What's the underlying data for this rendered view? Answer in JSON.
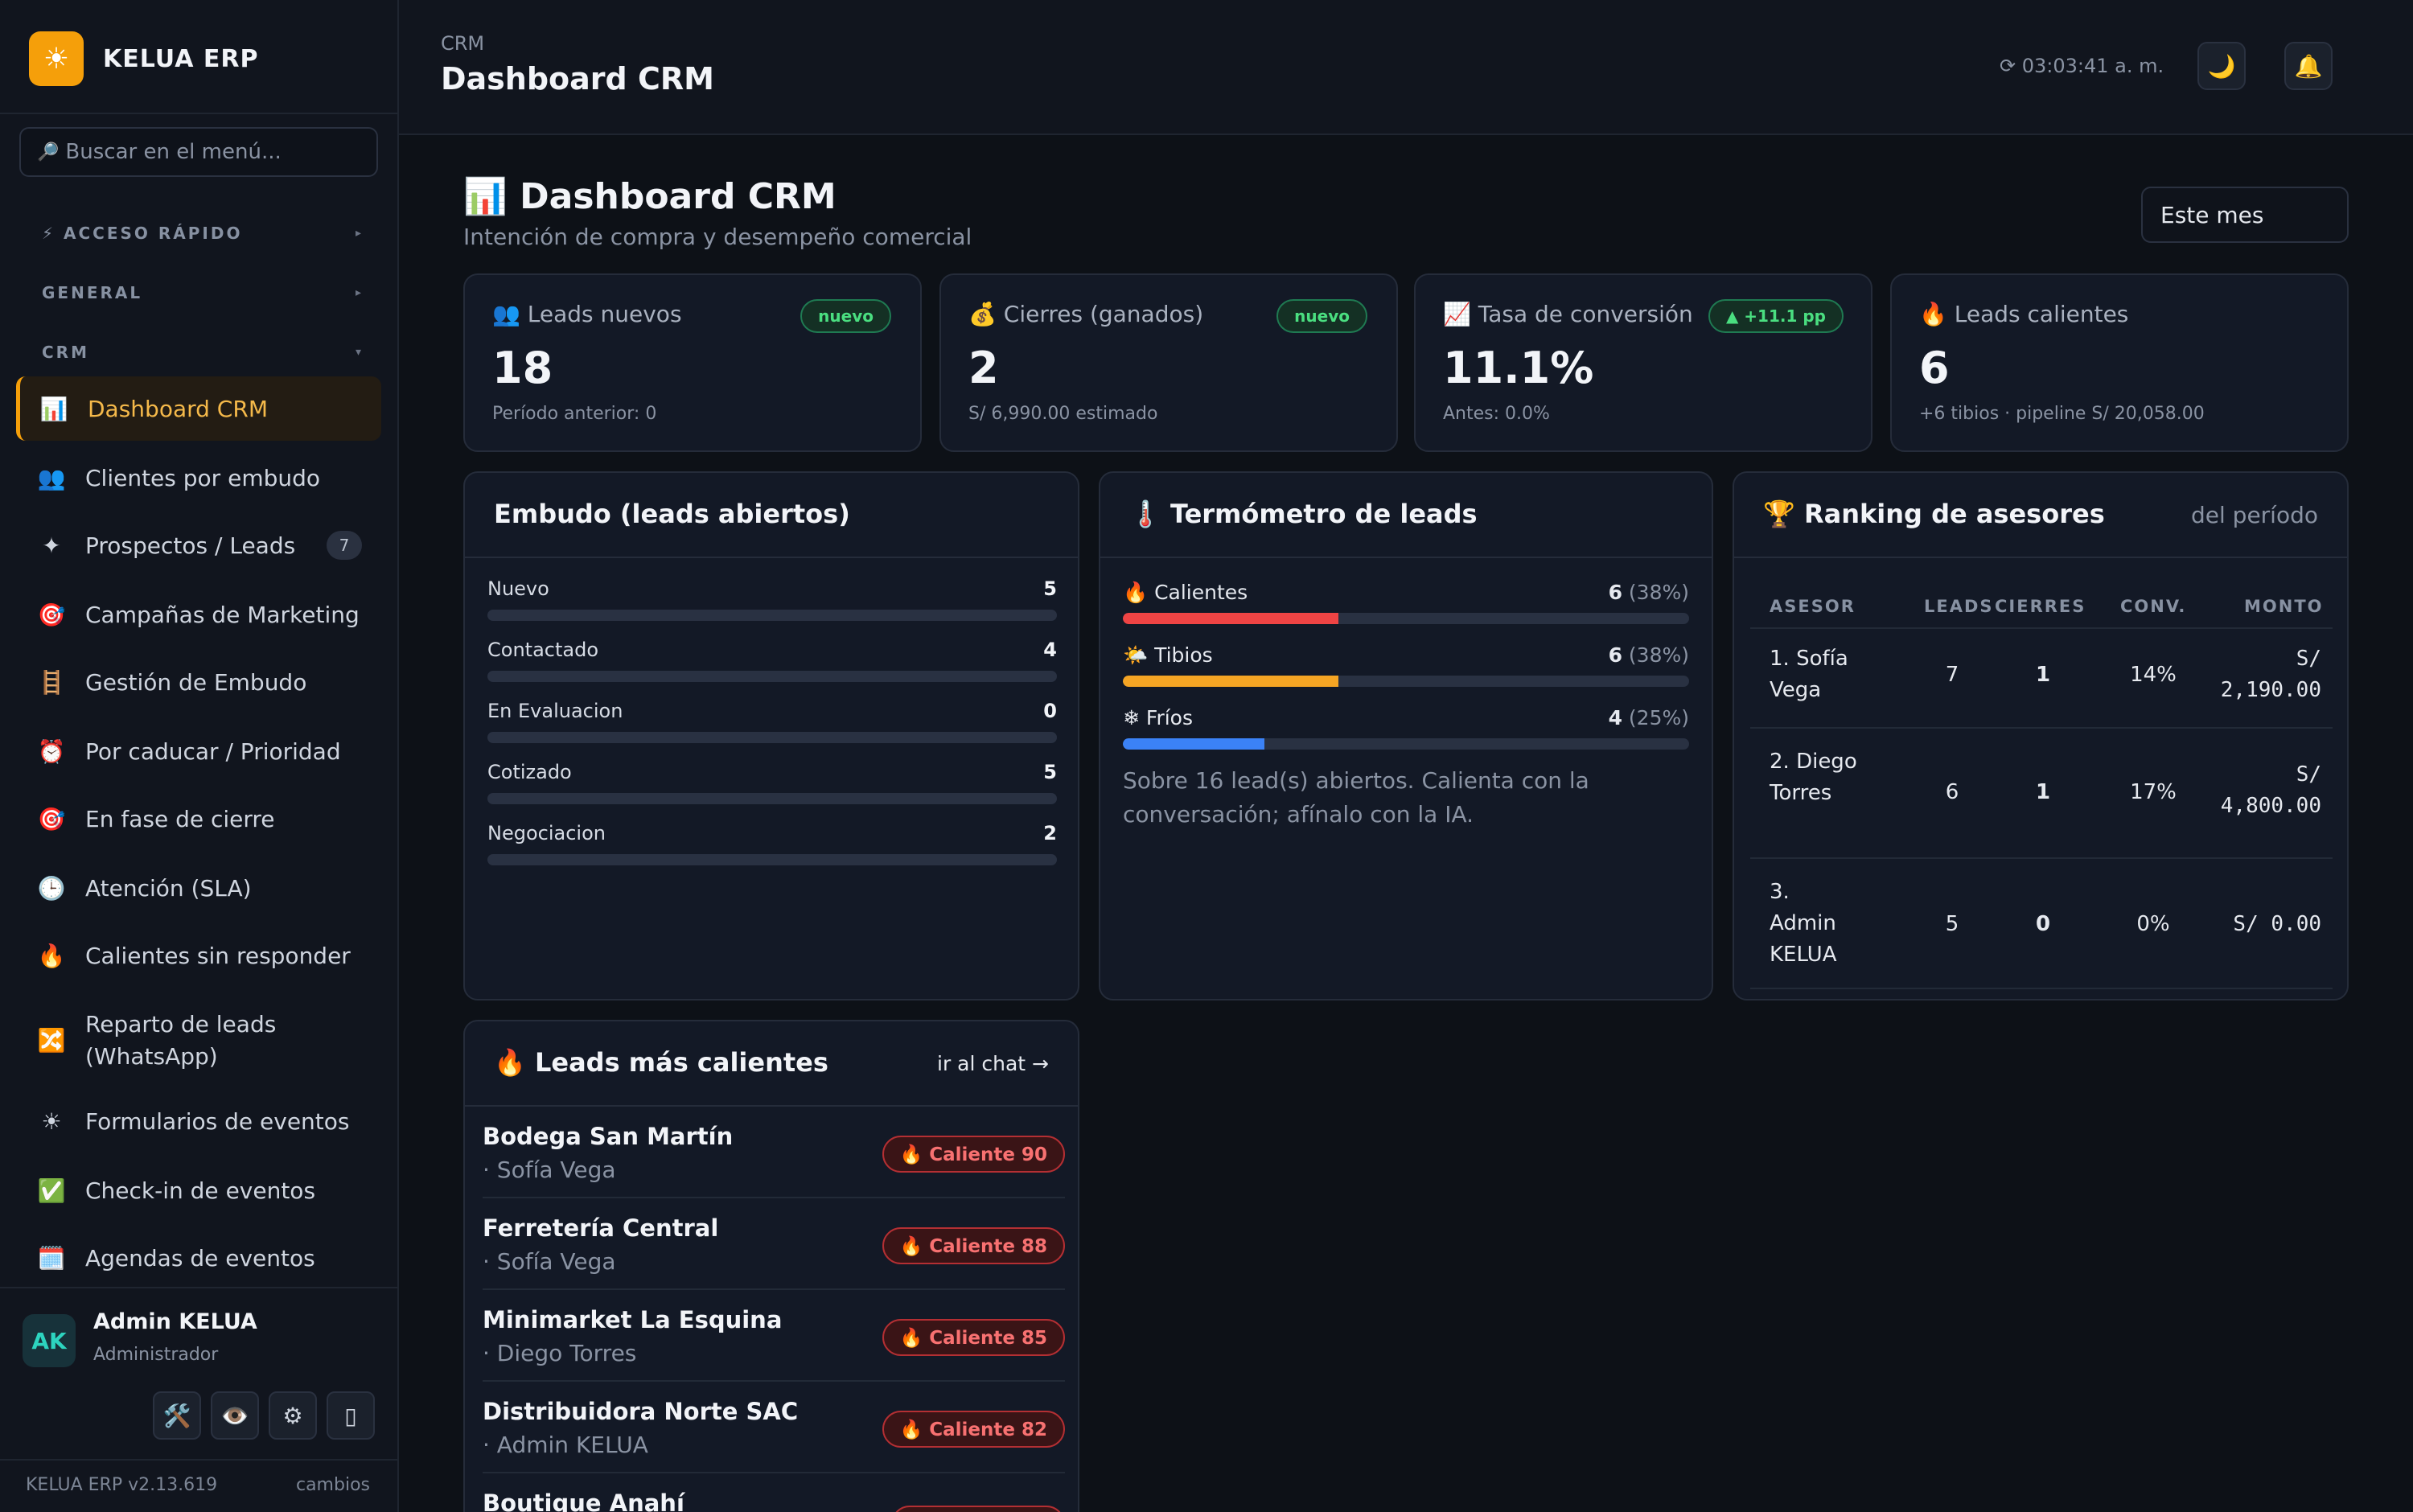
{
  "brand": {
    "logo_icon": "☀",
    "name": "KELUA ERP",
    "accent_color": "#f59f0a"
  },
  "sidebar": {
    "search_placeholder": "Buscar en el menú...",
    "sections": {
      "quick_access": "⚡ ACCESO RÁPIDO",
      "general": "GENERAL",
      "crm": "CRM"
    },
    "items": [
      {
        "icon": "📊",
        "label": "Dashboard CRM",
        "active": true
      },
      {
        "icon": "👥",
        "label": "Clientes por embudo"
      },
      {
        "icon": "✦",
        "label": "Prospectos / Leads",
        "badge": "7"
      },
      {
        "icon": "🎯",
        "label": "Campañas de Marketing"
      },
      {
        "icon": "🪜",
        "label": "Gestión de Embudo"
      },
      {
        "icon": "⏰",
        "label": "Por caducar / Prioridad"
      },
      {
        "icon": "🎯",
        "label": "En fase de cierre"
      },
      {
        "icon": "🕒",
        "label": "Atención (SLA)"
      },
      {
        "icon": "🔥",
        "label": "Calientes sin responder"
      },
      {
        "icon": "🔀",
        "label": "Reparto de leads (WhatsApp)"
      },
      {
        "icon": "☀",
        "label": "Formularios de eventos"
      },
      {
        "icon": "✅",
        "label": "Check-in de eventos"
      },
      {
        "icon": "🗓️",
        "label": "Agendas de eventos"
      }
    ],
    "user": {
      "initials": "AK",
      "name": "Admin KELUA",
      "role": "Administrador"
    },
    "tools": [
      "🛠️",
      "👁️",
      "⚙",
      "▯"
    ],
    "version": "KELUA ERP v2.13.619",
    "changes_link": "cambios"
  },
  "topbar": {
    "breadcrumb": "CRM",
    "title": "Dashboard CRM",
    "clock": "⟳ 03:03:41 a. m.",
    "theme_icon": "🌙",
    "notifications_icon": "🔔"
  },
  "page": {
    "title": "📊 Dashboard CRM",
    "subtitle": "Intención de compra y desempeño comercial",
    "period": "Este mes"
  },
  "kpis": [
    {
      "label": "👥 Leads nuevos",
      "value": "18",
      "sub": "Período anterior: 0",
      "badge": "nuevo"
    },
    {
      "label": "💰 Cierres (ganados)",
      "value": "2",
      "sub": "S/ 6,990.00 estimado",
      "badge": "nuevo"
    },
    {
      "label": "📈 Tasa de conversión",
      "value": "11.1%",
      "sub": "Antes: 0.0%",
      "badge": "▲ +11.1 pp"
    },
    {
      "label": "🔥 Leads calientes",
      "value": "6",
      "sub": "+6 tibios · pipeline S/ 20,058.00"
    }
  ],
  "funnel": {
    "title": "Embudo (leads abiertos)",
    "stages": [
      {
        "label": "Nuevo",
        "value": 5
      },
      {
        "label": "Contactado",
        "value": 4
      },
      {
        "label": "En Evaluacion",
        "value": 0
      },
      {
        "label": "Cotizado",
        "value": 5
      },
      {
        "label": "Negociacion",
        "value": 2
      }
    ]
  },
  "thermometer": {
    "title": "🌡️ Termómetro de leads",
    "rows": [
      {
        "label": "🔥 Calientes",
        "count": "6",
        "pct": "(38%)",
        "fraction": 0.38,
        "color": "#ef4444"
      },
      {
        "label": "🌤️ Tibios",
        "count": "6",
        "pct": "(38%)",
        "fraction": 0.38,
        "color": "#f5a524"
      },
      {
        "label": "❄ Fríos",
        "count": "4",
        "pct": "(25%)",
        "fraction": 0.25,
        "color": "#3b82f6"
      }
    ],
    "note": "Sobre 16 lead(s) abiertos. Calienta con la conversación; afínalo con la IA."
  },
  "ranking": {
    "title": "🏆 Ranking de asesores",
    "aside": "del período",
    "columns": [
      "ASESOR",
      "LEADS",
      "CIERRES",
      "CONV.",
      "MONTO"
    ],
    "rows": [
      {
        "name": "1. Sofía Vega",
        "leads": "7",
        "closes": "1",
        "conv": "14%",
        "amount": "S/ 2,190.00"
      },
      {
        "name": "2. Diego Torres",
        "leads": "6",
        "closes": "1",
        "conv": "17%",
        "amount": "S/ 4,800.00"
      },
      {
        "name": "3. Admin KELUA",
        "leads": "5",
        "closes": "0",
        "conv": "0%",
        "amount": "S/ 0.00"
      }
    ]
  },
  "hot_leads": {
    "title": "🔥 Leads más calientes",
    "link": "ir al chat →",
    "rows": [
      {
        "name": "Bodega San Martín",
        "owner": "· Sofía Vega",
        "score": "🔥 Caliente 90"
      },
      {
        "name": "Ferretería Central",
        "owner": "· Sofía Vega",
        "score": "🔥 Caliente 88"
      },
      {
        "name": "Minimarket La Esquina",
        "owner": "· Diego Torres",
        "score": "🔥 Caliente 85"
      },
      {
        "name": "Distribuidora Norte SAC",
        "owner": "· Admin KELUA",
        "score": "🔥 Caliente 82"
      },
      {
        "name": "Boutique Anahí",
        "owner": "",
        "score": ""
      }
    ]
  }
}
